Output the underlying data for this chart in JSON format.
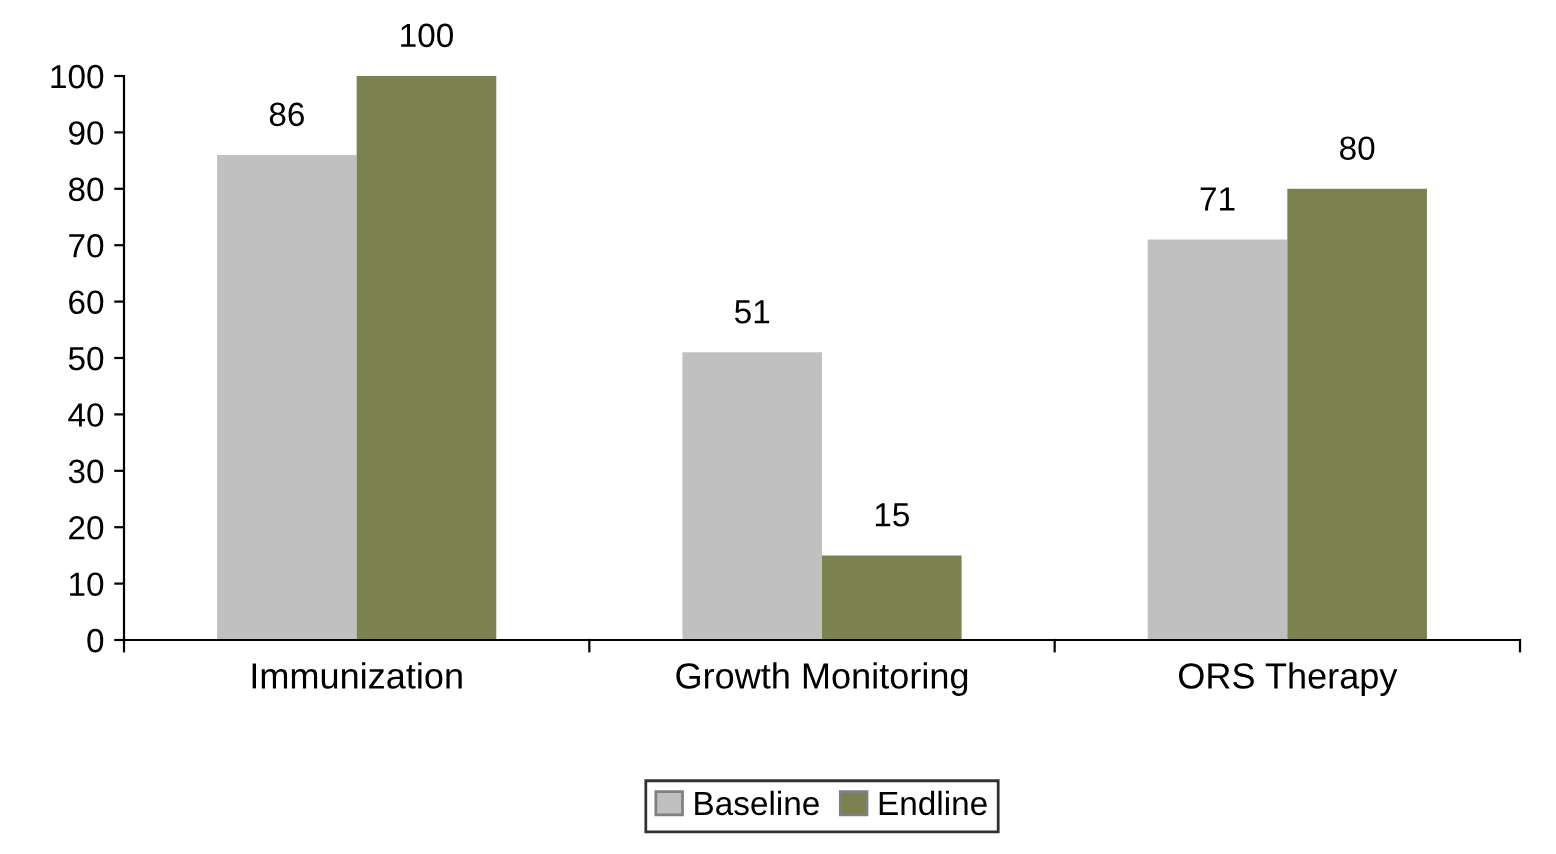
{
  "chart_data": {
    "type": "bar",
    "categories": [
      "Immunization",
      "Growth Monitoring",
      "ORS Therapy"
    ],
    "series": [
      {
        "name": "Baseline",
        "color": "#c0c0c0",
        "values": [
          86,
          51,
          71
        ]
      },
      {
        "name": "Endline",
        "color": "#7b814f",
        "values": [
          100,
          15,
          80
        ]
      }
    ],
    "ylim": [
      0,
      100
    ],
    "yticks": [
      0,
      10,
      20,
      30,
      40,
      50,
      60,
      70,
      80,
      90,
      100
    ],
    "grid": false,
    "legend": "bottom",
    "data_labels": true
  }
}
